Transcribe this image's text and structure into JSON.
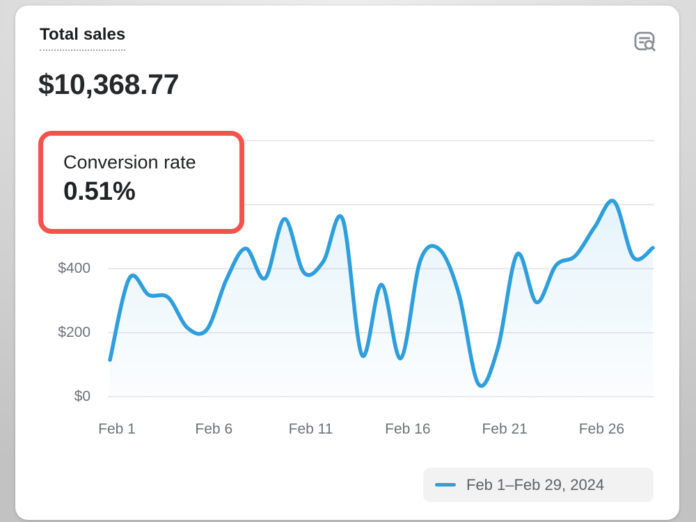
{
  "card": {
    "title": "Total sales",
    "total_value": "$10,368.77",
    "icon_name": "report-search-icon"
  },
  "callout": {
    "label": "Conversion rate",
    "value": "0.51%",
    "highlight_color": "#f4524d"
  },
  "chart_data": {
    "type": "line",
    "series_name": "Total sales",
    "x": [
      "Feb 1",
      "Feb 2",
      "Feb 3",
      "Feb 4",
      "Feb 5",
      "Feb 6",
      "Feb 7",
      "Feb 8",
      "Feb 9",
      "Feb 10",
      "Feb 11",
      "Feb 12",
      "Feb 13",
      "Feb 14",
      "Feb 15",
      "Feb 16",
      "Feb 17",
      "Feb 18",
      "Feb 19",
      "Feb 20",
      "Feb 21",
      "Feb 22",
      "Feb 23",
      "Feb 24",
      "Feb 25",
      "Feb 26",
      "Feb 27",
      "Feb 28",
      "Feb 29"
    ],
    "values": [
      115,
      370,
      318,
      310,
      215,
      210,
      365,
      463,
      370,
      555,
      388,
      422,
      555,
      130,
      350,
      120,
      424,
      460,
      320,
      40,
      150,
      445,
      295,
      410,
      440,
      530,
      610,
      435,
      465
    ],
    "xlabel": "",
    "ylabel": "",
    "ylim": [
      0,
      800
    ],
    "grid": true,
    "grid_values": [
      0,
      200,
      400,
      600,
      800
    ],
    "y_ticks": [
      {
        "label": "$400",
        "value": 400
      },
      {
        "label": "$200",
        "value": 200
      },
      {
        "label": "$0",
        "value": 0
      }
    ],
    "x_ticks": [
      {
        "label": "Feb 1",
        "day": 1
      },
      {
        "label": "Feb 6",
        "day": 6
      },
      {
        "label": "Feb 11",
        "day": 11
      },
      {
        "label": "Feb 16",
        "day": 16
      },
      {
        "label": "Feb 21",
        "day": 21
      },
      {
        "label": "Feb 26",
        "day": 26
      }
    ],
    "legend": "Feb 1–Feb 29, 2024",
    "legend_position": "bottom-right",
    "colors": {
      "line": "#2e9edc",
      "area_top": "rgba(46,158,220,0.12)",
      "area_bottom": "rgba(46,158,220,0.02)",
      "grid": "#e9e9e9",
      "tick_text": "#6d7278"
    }
  }
}
